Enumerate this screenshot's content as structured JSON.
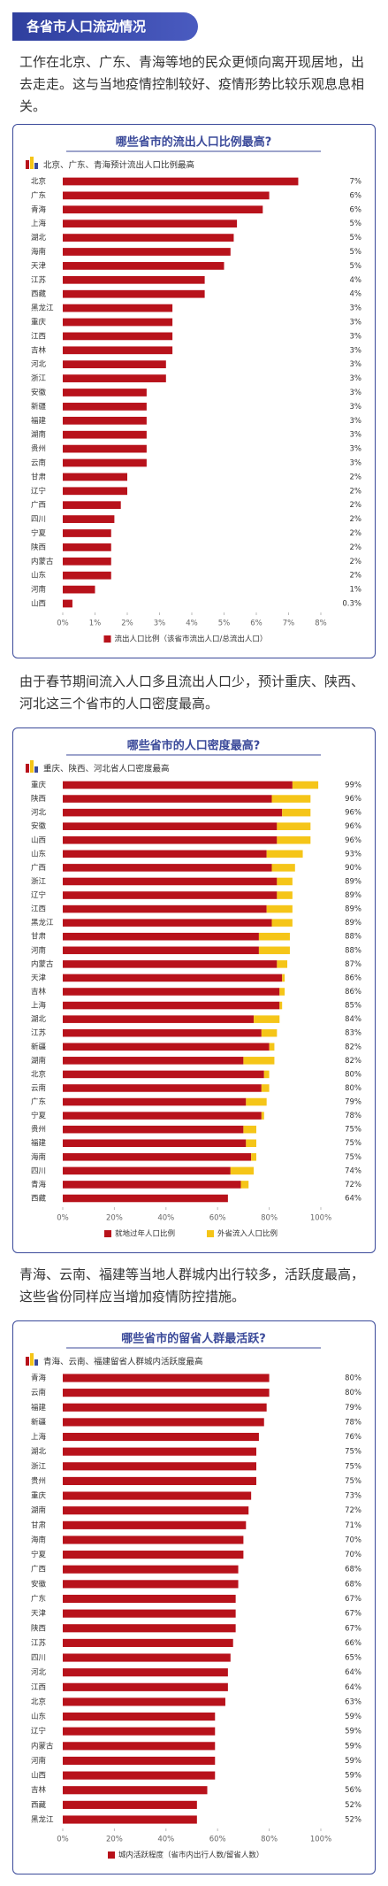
{
  "banner": "各省市人口流动情况",
  "paragraphs": [
    "工作在北京、广东、青海等地的民众更倾向离开现居地，出去走走。这与当地疫情控制较好、疫情形势比较乐观息息相关。",
    "由于春节期间流入人口多且流出人口少，预计重庆、陕西、河北这三个省市的人口密度最高。",
    "青海、云南、福建等当地人群城内出行较多，活跃度最高，这些省份同样应当增加疫情防控措施。"
  ],
  "chart_data": [
    {
      "type": "bar",
      "orientation": "horizontal",
      "title": "哪些省市的流出人口比例最高?",
      "subtitle": "北京、广东、青海预计流出人口比例最高",
      "categories": [
        "北京",
        "广东",
        "青海",
        "上海",
        "湖北",
        "海南",
        "天津",
        "江苏",
        "西藏",
        "黑龙江",
        "重庆",
        "江西",
        "吉林",
        "河北",
        "浙江",
        "安徽",
        "新疆",
        "福建",
        "湖南",
        "贵州",
        "云南",
        "甘肃",
        "辽宁",
        "广西",
        "四川",
        "宁夏",
        "陕西",
        "内蒙古",
        "山东",
        "河南",
        "山西"
      ],
      "series": [
        {
          "name": "流出人口比例（该省市流出人口/总流出人口）",
          "color": "#b8121b",
          "values": [
            7.3,
            6.4,
            6.2,
            5.4,
            5.3,
            5.2,
            5.0,
            4.4,
            4.4,
            3.4,
            3.4,
            3.4,
            3.4,
            3.2,
            3.2,
            2.6,
            2.6,
            2.6,
            2.6,
            2.6,
            2.6,
            2.0,
            2.0,
            1.8,
            1.6,
            1.5,
            1.5,
            1.5,
            1.5,
            1.0,
            0.3
          ],
          "value_labels": [
            "7%",
            "6%",
            "6%",
            "5%",
            "5%",
            "5%",
            "5%",
            "4%",
            "4%",
            "3%",
            "3%",
            "3%",
            "3%",
            "3%",
            "3%",
            "3%",
            "3%",
            "3%",
            "3%",
            "3%",
            "3%",
            "2%",
            "2%",
            "2%",
            "2%",
            "2%",
            "2%",
            "2%",
            "2%",
            "1%",
            "0.3%"
          ]
        }
      ],
      "xlim": [
        0,
        8
      ],
      "xticks": [
        {
          "value": 0,
          "label": "0%"
        },
        {
          "value": 1,
          "label": "1%"
        },
        {
          "value": 2,
          "label": "2%"
        },
        {
          "value": 3,
          "label": "3%"
        },
        {
          "value": 4,
          "label": "4%"
        },
        {
          "value": 5,
          "label": "5%"
        },
        {
          "value": 6,
          "label": "6%"
        },
        {
          "value": 7,
          "label": "7%"
        },
        {
          "value": 8,
          "label": "8%"
        }
      ],
      "grid": false
    },
    {
      "type": "stacked_bar",
      "orientation": "horizontal",
      "title": "哪些省市的人口密度最高?",
      "subtitle": "重庆、陕西、河北省人口密度最高",
      "categories": [
        "重庆",
        "陕西",
        "河北",
        "安徽",
        "山西",
        "山东",
        "广西",
        "浙江",
        "辽宁",
        "江西",
        "黑龙江",
        "甘肃",
        "河南",
        "内蒙古",
        "天津",
        "吉林",
        "上海",
        "湖北",
        "江苏",
        "新疆",
        "湖南",
        "北京",
        "云南",
        "广东",
        "宁夏",
        "贵州",
        "福建",
        "海南",
        "四川",
        "青海",
        "西藏"
      ],
      "series": [
        {
          "name": "就地过年人口比例",
          "color": "#b8121b",
          "values": [
            89,
            81,
            85,
            83,
            83,
            79,
            81,
            83,
            83,
            79,
            81,
            76,
            76,
            83,
            85,
            84,
            84,
            74,
            77,
            80,
            70,
            78,
            77,
            71,
            77,
            70,
            71,
            73,
            65,
            69,
            64
          ]
        },
        {
          "name": "外省流入人口比例",
          "color": "#f5c518",
          "values": [
            10,
            15,
            11,
            13,
            13,
            14,
            9,
            6,
            6,
            10,
            8,
            12,
            12,
            4,
            1,
            2,
            1,
            10,
            6,
            2,
            12,
            2,
            3,
            8,
            1,
            5,
            4,
            2,
            9,
            3,
            0
          ]
        }
      ],
      "total_labels": [
        "99%",
        "96%",
        "96%",
        "96%",
        "96%",
        "93%",
        "90%",
        "89%",
        "89%",
        "89%",
        "89%",
        "88%",
        "88%",
        "87%",
        "86%",
        "86%",
        "85%",
        "84%",
        "83%",
        "82%",
        "82%",
        "80%",
        "80%",
        "79%",
        "78%",
        "75%",
        "75%",
        "75%",
        "74%",
        "72%",
        "64%"
      ],
      "xlim": [
        0,
        100
      ],
      "xticks": [
        {
          "value": 0,
          "label": "0%"
        },
        {
          "value": 20,
          "label": "20%"
        },
        {
          "value": 40,
          "label": "40%"
        },
        {
          "value": 60,
          "label": "60%"
        },
        {
          "value": 80,
          "label": "80%"
        },
        {
          "value": 100,
          "label": "100%"
        }
      ],
      "grid": false
    },
    {
      "type": "bar",
      "orientation": "horizontal",
      "title": "哪些省市的留省人群最活跃?",
      "subtitle": "青海、云南、福建留省人群城内活跃度最高",
      "categories": [
        "青海",
        "云南",
        "福建",
        "新疆",
        "上海",
        "湖北",
        "浙江",
        "贵州",
        "重庆",
        "湖南",
        "甘肃",
        "海南",
        "宁夏",
        "广西",
        "安徽",
        "广东",
        "天津",
        "陕西",
        "江苏",
        "四川",
        "河北",
        "江西",
        "北京",
        "山东",
        "辽宁",
        "内蒙古",
        "河南",
        "山西",
        "吉林",
        "西藏",
        "黑龙江"
      ],
      "series": [
        {
          "name": "城内活跃程度（省市内出行人数/留省人数）",
          "color": "#b8121b",
          "values": [
            80,
            80,
            79,
            78,
            76,
            75,
            75,
            75,
            73,
            72,
            71,
            70,
            70,
            68,
            68,
            67,
            67,
            67,
            66,
            65,
            64,
            64,
            63,
            59,
            59,
            59,
            59,
            59,
            56,
            52,
            52
          ],
          "value_labels": [
            "80%",
            "80%",
            "79%",
            "78%",
            "76%",
            "75%",
            "75%",
            "75%",
            "73%",
            "72%",
            "71%",
            "70%",
            "70%",
            "68%",
            "68%",
            "67%",
            "67%",
            "67%",
            "66%",
            "65%",
            "64%",
            "64%",
            "63%",
            "59%",
            "59%",
            "59%",
            "59%",
            "59%",
            "56%",
            "52%",
            "52%"
          ]
        }
      ],
      "xlim": [
        0,
        100
      ],
      "xticks": [
        {
          "value": 0,
          "label": "0%"
        },
        {
          "value": 20,
          "label": "20%"
        },
        {
          "value": 40,
          "label": "40%"
        },
        {
          "value": 60,
          "label": "60%"
        },
        {
          "value": 80,
          "label": "80%"
        },
        {
          "value": 100,
          "label": "100%"
        }
      ],
      "grid": false
    }
  ]
}
